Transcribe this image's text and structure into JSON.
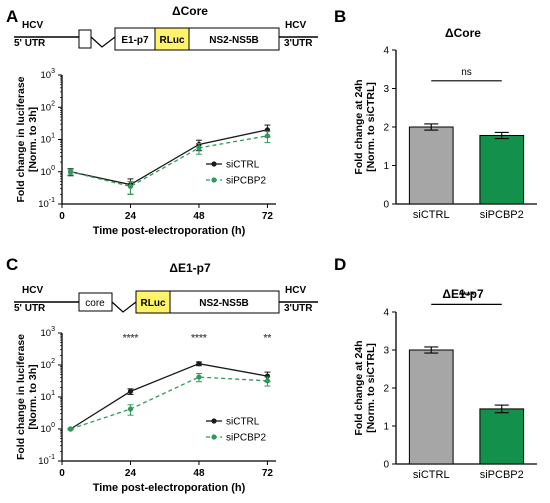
{
  "panels": {
    "A": {
      "letter": "A",
      "title": "ΔCore",
      "construct": {
        "left_label_1": "HCV",
        "left_label_2": "5' UTR",
        "right_label_1": "HCV",
        "right_label_2": "3'UTR",
        "boxes": [
          "",
          "E1-p7",
          "RLuc",
          "NS2-NS5B"
        ]
      }
    },
    "B": {
      "letter": "B",
      "title": "ΔCore",
      "significance": "ns"
    },
    "C": {
      "letter": "C",
      "title": "ΔE1-p7",
      "construct": {
        "left_label_1": "HCV",
        "left_label_2": "5' UTR",
        "right_label_1": "HCV",
        "right_label_2": "3'UTR",
        "boxes": [
          "core",
          "RLuc",
          "NS2-NS5B"
        ]
      },
      "significance": [
        "",
        "****",
        "****",
        "**"
      ]
    },
    "D": {
      "letter": "D",
      "title": "ΔE1-p7",
      "significance": "****"
    }
  },
  "colors": {
    "siCTRL": "#1a1a1a",
    "siPCBP2": "#2e9a5a",
    "bar_siCTRL": "#a6a6a6",
    "bar_siPCBP2": "#13904a",
    "rluc_box": "#fff36b"
  },
  "chart_data": [
    {
      "panel": "A",
      "type": "line",
      "xlabel": "Time post-electroporation (h)",
      "ylabel_1": "Fold change in luciferase",
      "ylabel_2": "[Norm. to 3h]",
      "x": [
        3,
        24,
        48,
        72
      ],
      "xticks": [
        "0",
        "24",
        "48",
        "72"
      ],
      "xlim": [
        0,
        75
      ],
      "yscale": "log",
      "ylim": [
        0.1,
        1000
      ],
      "yticks_exp": [
        "-1",
        "0",
        "1",
        "2",
        "3"
      ],
      "series": [
        {
          "name": "siCTRL",
          "values": [
            1.0,
            0.4,
            7,
            20
          ],
          "err": [
            0.25,
            0.2,
            2.5,
            8
          ]
        },
        {
          "name": "siPCBP2",
          "values": [
            1.0,
            0.35,
            5.5,
            13
          ],
          "err": [
            0.2,
            0.15,
            2,
            5
          ]
        }
      ],
      "legend": "bottom-right"
    },
    {
      "panel": "B",
      "type": "bar",
      "ylabel_1": "Fold change at 24h",
      "ylabel_2": "[Norm. to siCTRL]",
      "categories": [
        "siCTRL",
        "siPCBP2"
      ],
      "values": [
        2.0,
        1.78
      ],
      "err": [
        0.08,
        0.08
      ],
      "ylim": [
        0,
        4
      ],
      "yticks": [
        "0",
        "1",
        "2",
        "3",
        "4"
      ]
    },
    {
      "panel": "C",
      "type": "line",
      "xlabel": "Time post-electroporation (h)",
      "ylabel_1": "Fold change in luciferase",
      "ylabel_2": "[Norm. to 3h]",
      "x": [
        3,
        24,
        48,
        72
      ],
      "xticks": [
        "0",
        "24",
        "48",
        "72"
      ],
      "xlim": [
        0,
        75
      ],
      "yscale": "log",
      "ylim": [
        0.1,
        1000
      ],
      "yticks_exp": [
        "-1",
        "0",
        "1",
        "2",
        "3"
      ],
      "series": [
        {
          "name": "siCTRL",
          "values": [
            1.0,
            15,
            110,
            45
          ],
          "err": [
            0.05,
            3,
            15,
            15
          ]
        },
        {
          "name": "siPCBP2",
          "values": [
            1.0,
            4.2,
            42,
            32
          ],
          "err": [
            0.05,
            1.5,
            12,
            10
          ]
        }
      ],
      "legend": "bottom-right"
    },
    {
      "panel": "D",
      "type": "bar",
      "ylabel_1": "Fold change at 24h",
      "ylabel_2": "[Norm. to siCTRL]",
      "categories": [
        "siCTRL",
        "siPCBP2"
      ],
      "values": [
        3.0,
        1.45
      ],
      "err": [
        0.08,
        0.1
      ],
      "ylim": [
        0,
        4
      ],
      "yticks": [
        "0",
        "1",
        "2",
        "3",
        "4"
      ]
    }
  ]
}
